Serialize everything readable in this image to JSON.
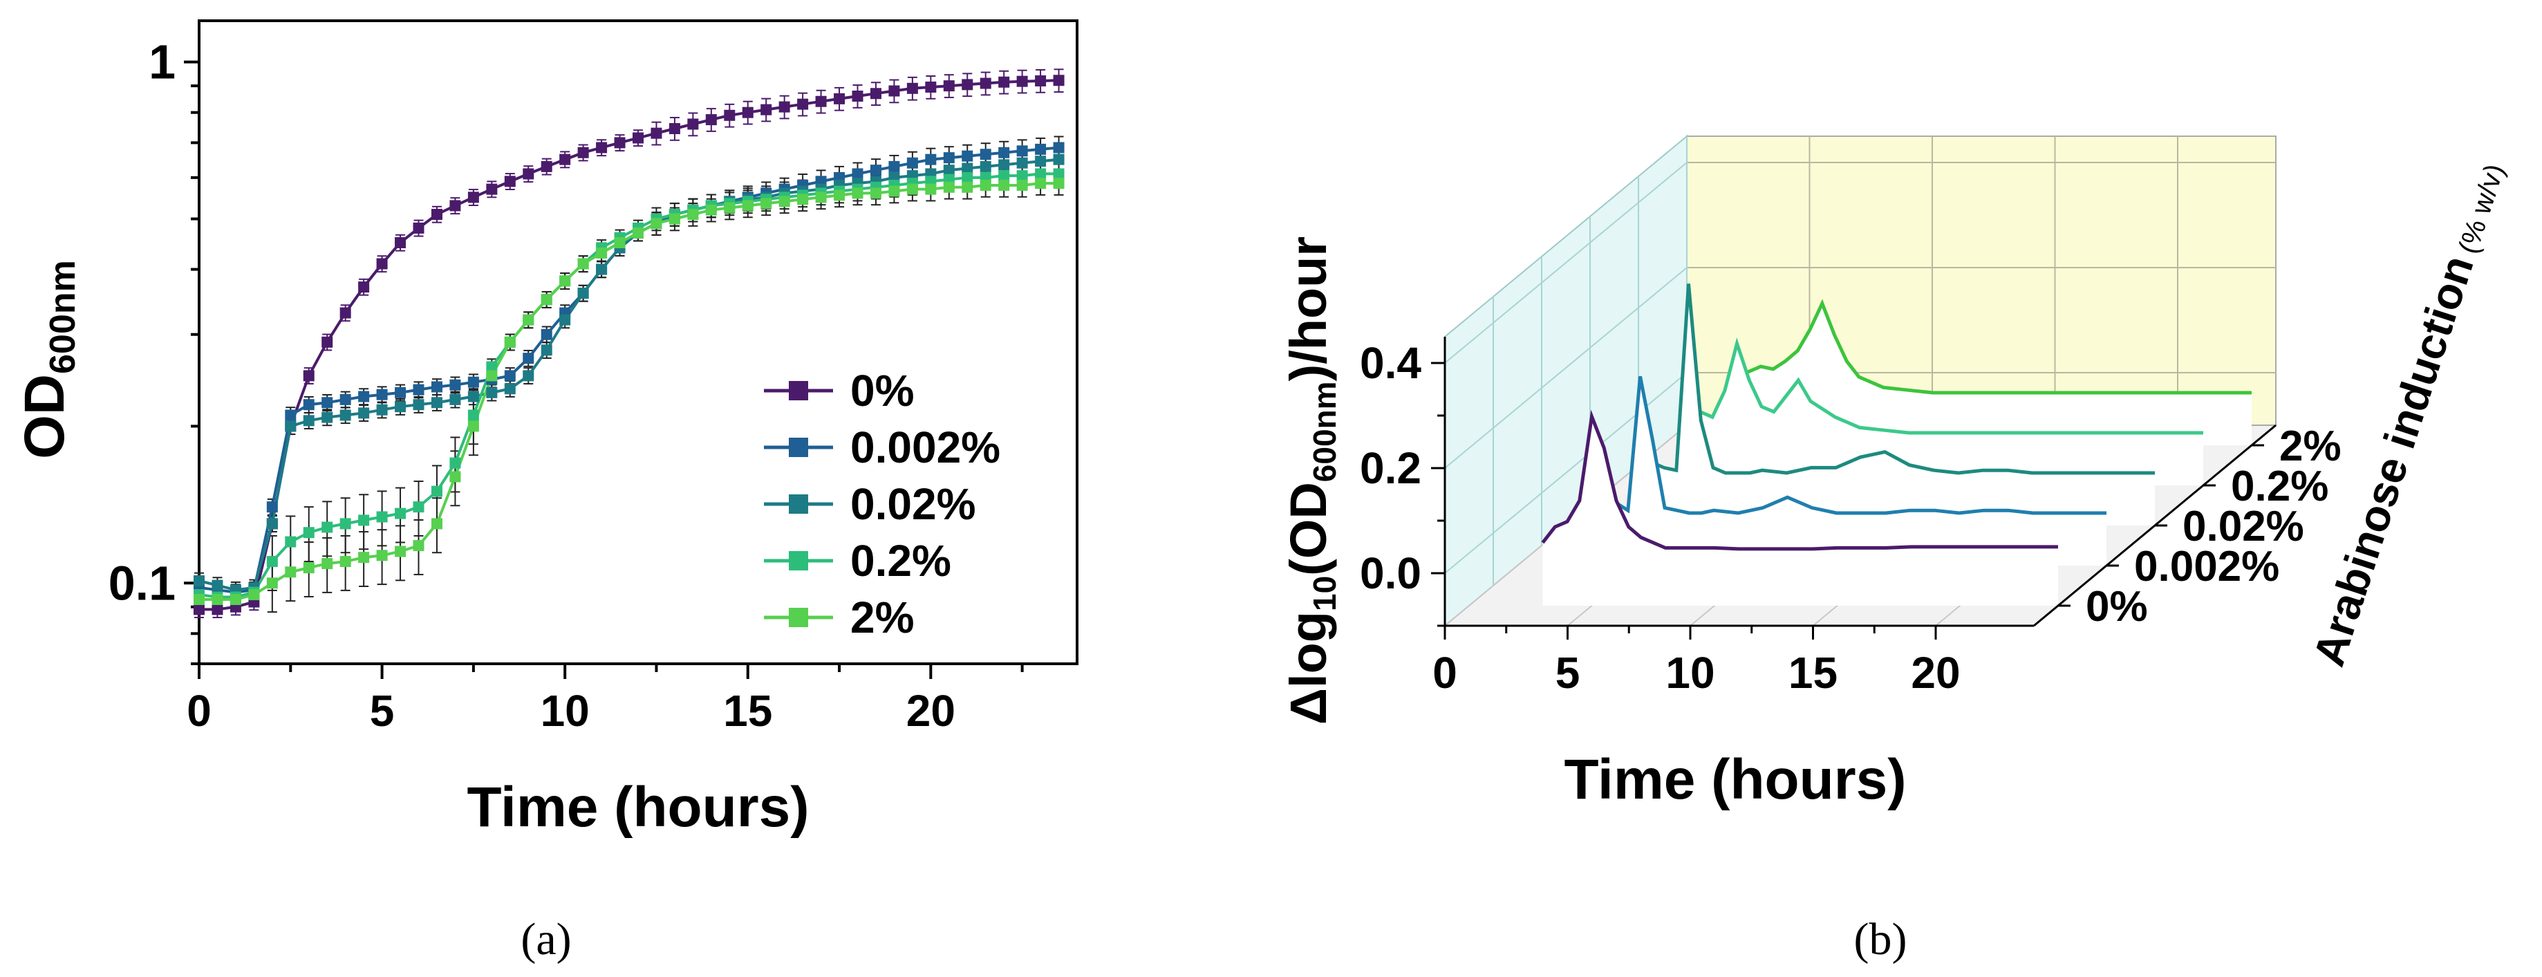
{
  "chart_data": [
    {
      "panel": "(a)",
      "type": "line",
      "yscale": "log",
      "ylabel_main": "OD",
      "ylabel_sub": "600nm",
      "xlabel": "Time (hours)",
      "xlim": [
        0,
        24
      ],
      "ylim": [
        0.07,
        1.2
      ],
      "xticks": [
        0,
        5,
        10,
        15,
        20
      ],
      "xtick_labels": [
        "0",
        "5",
        "10",
        "15",
        "20"
      ],
      "yticks": [
        0.1,
        1
      ],
      "ytick_labels": [
        "0.1",
        "1"
      ],
      "legend_position": "bottom-right",
      "x": [
        0,
        0.5,
        1,
        1.5,
        2,
        2.5,
        3,
        3.5,
        4,
        4.5,
        5,
        5.5,
        6,
        6.5,
        7,
        7.5,
        8,
        8.5,
        9,
        9.5,
        10,
        10.5,
        11,
        11.5,
        12,
        12.5,
        13,
        13.5,
        14,
        14.5,
        15,
        15.5,
        16,
        16.5,
        17,
        17.5,
        18,
        18.5,
        19,
        19.5,
        20,
        20.5,
        21,
        21.5,
        22,
        22.5,
        23,
        23.5
      ],
      "series": [
        {
          "name": "0%",
          "color": "#4b1b6b",
          "values": [
            0.089,
            0.089,
            0.09,
            0.092,
            0.13,
            0.2,
            0.25,
            0.29,
            0.33,
            0.37,
            0.41,
            0.45,
            0.48,
            0.51,
            0.53,
            0.55,
            0.57,
            0.59,
            0.61,
            0.63,
            0.65,
            0.67,
            0.685,
            0.7,
            0.715,
            0.73,
            0.745,
            0.76,
            0.775,
            0.79,
            0.8,
            0.81,
            0.82,
            0.83,
            0.84,
            0.85,
            0.86,
            0.87,
            0.88,
            0.89,
            0.895,
            0.9,
            0.905,
            0.91,
            0.915,
            0.918,
            0.92,
            0.922
          ]
        },
        {
          "name": "0.002%",
          "color": "#1f5f93",
          "values": [
            0.098,
            0.097,
            0.096,
            0.097,
            0.14,
            0.21,
            0.22,
            0.222,
            0.225,
            0.228,
            0.23,
            0.232,
            0.235,
            0.238,
            0.24,
            0.243,
            0.246,
            0.25,
            0.27,
            0.3,
            0.33,
            0.36,
            0.4,
            0.44,
            0.47,
            0.49,
            0.51,
            0.52,
            0.53,
            0.54,
            0.55,
            0.56,
            0.57,
            0.58,
            0.59,
            0.6,
            0.61,
            0.62,
            0.63,
            0.64,
            0.65,
            0.655,
            0.66,
            0.665,
            0.67,
            0.675,
            0.68,
            0.685
          ]
        },
        {
          "name": "0.02%",
          "color": "#1d7b86",
          "values": [
            0.101,
            0.099,
            0.097,
            0.098,
            0.13,
            0.2,
            0.205,
            0.208,
            0.21,
            0.212,
            0.215,
            0.218,
            0.22,
            0.222,
            0.225,
            0.228,
            0.232,
            0.236,
            0.25,
            0.28,
            0.32,
            0.36,
            0.4,
            0.44,
            0.47,
            0.49,
            0.51,
            0.52,
            0.53,
            0.54,
            0.545,
            0.55,
            0.56,
            0.565,
            0.57,
            0.58,
            0.585,
            0.59,
            0.6,
            0.605,
            0.61,
            0.62,
            0.625,
            0.63,
            0.635,
            0.64,
            0.645,
            0.65
          ]
        },
        {
          "name": "0.2%",
          "color": "#2dbd7b",
          "values": [
            0.095,
            0.094,
            0.094,
            0.096,
            0.11,
            0.12,
            0.125,
            0.128,
            0.13,
            0.132,
            0.134,
            0.136,
            0.14,
            0.15,
            0.17,
            0.21,
            0.26,
            0.29,
            0.32,
            0.35,
            0.38,
            0.41,
            0.44,
            0.46,
            0.48,
            0.5,
            0.51,
            0.52,
            0.53,
            0.535,
            0.54,
            0.545,
            0.55,
            0.555,
            0.56,
            0.565,
            0.57,
            0.575,
            0.58,
            0.585,
            0.59,
            0.595,
            0.6,
            0.6,
            0.605,
            0.605,
            0.61,
            0.61
          ]
        },
        {
          "name": "2%",
          "color": "#56d04f",
          "values": [
            0.093,
            0.093,
            0.093,
            0.095,
            0.1,
            0.105,
            0.107,
            0.109,
            0.11,
            0.112,
            0.113,
            0.115,
            0.118,
            0.13,
            0.16,
            0.2,
            0.25,
            0.29,
            0.32,
            0.35,
            0.38,
            0.41,
            0.43,
            0.45,
            0.47,
            0.49,
            0.5,
            0.51,
            0.52,
            0.525,
            0.53,
            0.535,
            0.54,
            0.545,
            0.55,
            0.555,
            0.56,
            0.56,
            0.565,
            0.57,
            0.57,
            0.575,
            0.575,
            0.58,
            0.58,
            0.58,
            0.585,
            0.585
          ]
        }
      ]
    },
    {
      "panel": "(b)",
      "type": "line",
      "projection": "3d-waterfall",
      "ylabel_delta": "Δlog",
      "ylabel_sub10": "10",
      "ylabel_paren": "(OD",
      "ylabel_sub600": "600nm",
      "ylabel_tail": ")/hour",
      "xlabel": "Time (hours)",
      "zlabel": "Arabinose induction",
      "zlabel_unit": "(% w/v)",
      "xlim": [
        0,
        24
      ],
      "ylim": [
        -0.1,
        0.45
      ],
      "xticks": [
        0,
        5,
        10,
        15,
        20
      ],
      "xtick_labels": [
        "0",
        "5",
        "10",
        "15",
        "20"
      ],
      "yticks": [
        0.0,
        0.2,
        0.4
      ],
      "ytick_labels": [
        "0.0",
        "0.2",
        "0.4"
      ],
      "categories": [
        "0%",
        "0.002%",
        "0.02%",
        "0.2%",
        "2%"
      ],
      "x": [
        3,
        3.5,
        4,
        4.5,
        5,
        5.5,
        6,
        6.5,
        7,
        7.5,
        8,
        9,
        10,
        11,
        12,
        13,
        14,
        15,
        16,
        17,
        18,
        19,
        20,
        21,
        22,
        23,
        24
      ],
      "series": [
        {
          "name": "0%",
          "color": "#4b1b6b",
          "values": [
            0.02,
            0.05,
            0.06,
            0.1,
            0.26,
            0.2,
            0.1,
            0.05,
            0.03,
            0.02,
            0.01,
            0.01,
            0.01,
            0.008,
            0.008,
            0.008,
            0.008,
            0.01,
            0.01,
            0.01,
            0.012,
            0.012,
            0.012,
            0.012,
            0.012,
            0.012,
            0.012
          ]
        },
        {
          "name": "0.002%",
          "color": "#1f7fae",
          "values": [
            0.0,
            0.01,
            0.02,
            0.005,
            0.26,
            0.14,
            0.01,
            0.005,
            0.0,
            0.0,
            0.005,
            0.0,
            0.01,
            0.03,
            0.01,
            0.0,
            0.0,
            0.0,
            0.005,
            0.005,
            0.0,
            0.005,
            0.005,
            0.0,
            0.0,
            0.0,
            0.0
          ]
        },
        {
          "name": "0.02%",
          "color": "#1d8a80",
          "values": [
            0.0,
            0.02,
            0.01,
            0.005,
            0.36,
            0.1,
            0.01,
            0.0,
            0.0,
            0.0,
            0.005,
            0.0,
            0.01,
            0.01,
            0.03,
            0.04,
            0.015,
            0.005,
            0.0,
            0.005,
            0.005,
            0.0,
            0.0,
            0.0,
            0.0,
            0.0,
            0.0
          ]
        },
        {
          "name": "0.2%",
          "color": "#3cc98a",
          "values": [
            0.0,
            0.04,
            0.03,
            0.08,
            0.17,
            0.1,
            0.05,
            0.04,
            0.07,
            0.1,
            0.06,
            0.03,
            0.01,
            0.005,
            0.0,
            0.0,
            0.0,
            0.0,
            0.0,
            0.0,
            0.0,
            0.0,
            0.0,
            0.0,
            0.0,
            0.0,
            0.0
          ]
        },
        {
          "name": "2%",
          "color": "#3cc43c",
          "values": [
            0.03,
            0.04,
            0.05,
            0.045,
            0.06,
            0.08,
            0.12,
            0.17,
            0.11,
            0.06,
            0.03,
            0.01,
            0.005,
            0.0,
            0.0,
            0.0,
            0.0,
            0.0,
            0.0,
            0.0,
            0.0,
            0.0,
            0.0,
            0.0,
            0.0,
            0.0,
            0.0
          ]
        }
      ]
    }
  ],
  "captions": {
    "a": "(a)",
    "b": "(b)"
  }
}
